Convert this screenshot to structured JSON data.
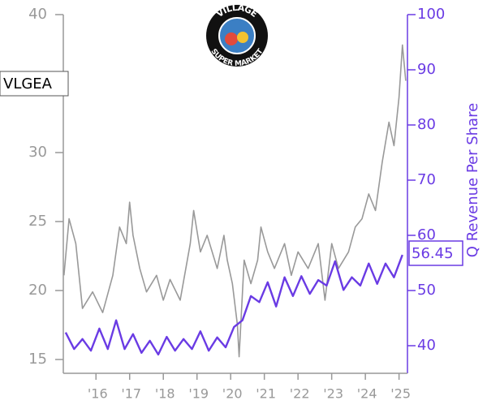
{
  "chart_data": {
    "type": "line",
    "logo_top": "VILLAGE",
    "logo_bottom": "SUPER MARKET",
    "y2label": "Q Revenue Per Share",
    "xlim": [
      2015.03,
      2025.25
    ],
    "xticks": [
      {
        "value": 2016,
        "label": "'16"
      },
      {
        "value": 2017,
        "label": "'17"
      },
      {
        "value": 2018,
        "label": "'18"
      },
      {
        "value": 2019,
        "label": "'19"
      },
      {
        "value": 2020,
        "label": "'20"
      },
      {
        "value": 2021,
        "label": "'21"
      },
      {
        "value": 2022,
        "label": "'22"
      },
      {
        "value": 2023,
        "label": "'23"
      },
      {
        "value": 2024,
        "label": "'24"
      },
      {
        "value": 2025,
        "label": "'25"
      }
    ],
    "ylim": [
      14,
      40
    ],
    "yticks": [
      15,
      20,
      25,
      30,
      40
    ],
    "y2lim": [
      35,
      100
    ],
    "y2ticks": [
      40,
      50,
      60,
      70,
      80,
      90,
      100
    ],
    "series": [
      {
        "name": "VLGEA",
        "color": "#999999",
        "axis": "y",
        "x": [
          2015.05,
          2015.2,
          2015.4,
          2015.6,
          2015.9,
          2016.2,
          2016.5,
          2016.7,
          2016.9,
          2017.0,
          2017.1,
          2017.3,
          2017.5,
          2017.8,
          2018.0,
          2018.2,
          2018.5,
          2018.8,
          2018.9,
          2019.1,
          2019.3,
          2019.6,
          2019.8,
          2019.9,
          2020.05,
          2020.2,
          2020.25,
          2020.4,
          2020.6,
          2020.8,
          2020.9,
          2021.1,
          2021.3,
          2021.6,
          2021.8,
          2022.0,
          2022.3,
          2022.6,
          2022.8,
          2023.0,
          2023.2,
          2023.5,
          2023.7,
          2023.9,
          2024.1,
          2024.3,
          2024.5,
          2024.7,
          2024.85,
          2025.0,
          2025.1,
          2025.2
        ],
        "values": [
          21.1,
          25.2,
          23.4,
          18.7,
          19.9,
          18.4,
          21.1,
          24.6,
          23.4,
          26.4,
          24,
          21.6,
          19.9,
          21.1,
          19.3,
          20.8,
          19.3,
          23.4,
          25.8,
          22.8,
          24,
          21.6,
          24,
          22.2,
          20.5,
          17.5,
          15.2,
          22.2,
          20.5,
          22.2,
          24.6,
          22.8,
          21.6,
          23.4,
          21.1,
          22.8,
          21.6,
          23.4,
          19.3,
          23.4,
          21.6,
          22.8,
          24.6,
          25.2,
          27.0,
          25.8,
          29.3,
          32.2,
          30.5,
          34.0,
          37.8,
          35.2
        ]
      },
      {
        "color": "#6a3be4",
        "axis": "y2",
        "x": [
          2015.1,
          2015.35,
          2015.6,
          2015.85,
          2016.1,
          2016.35,
          2016.6,
          2016.85,
          2017.1,
          2017.35,
          2017.6,
          2017.85,
          2018.1,
          2018.35,
          2018.6,
          2018.85,
          2019.1,
          2019.35,
          2019.6,
          2019.85,
          2020.1,
          2020.35,
          2020.6,
          2020.85,
          2021.1,
          2021.35,
          2021.6,
          2021.85,
          2022.1,
          2022.35,
          2022.6,
          2022.85,
          2023.1,
          2023.35,
          2023.6,
          2023.85,
          2024.1,
          2024.35,
          2024.6,
          2024.85,
          2025.1
        ],
        "values": [
          42.4,
          39.4,
          41.2,
          39.1,
          43.1,
          39.4,
          44.6,
          39.4,
          42.1,
          38.7,
          40.9,
          38.4,
          41.6,
          39.1,
          41.2,
          39.4,
          42.6,
          39.1,
          41.5,
          39.7,
          43.4,
          44.6,
          49.0,
          47.9,
          51.5,
          47.1,
          52.4,
          49.0,
          52.6,
          49.4,
          51.9,
          50.9,
          55.3,
          50.1,
          52.4,
          50.9,
          54.9,
          51.2,
          54.9,
          52.4,
          56.45
        ]
      }
    ]
  }
}
